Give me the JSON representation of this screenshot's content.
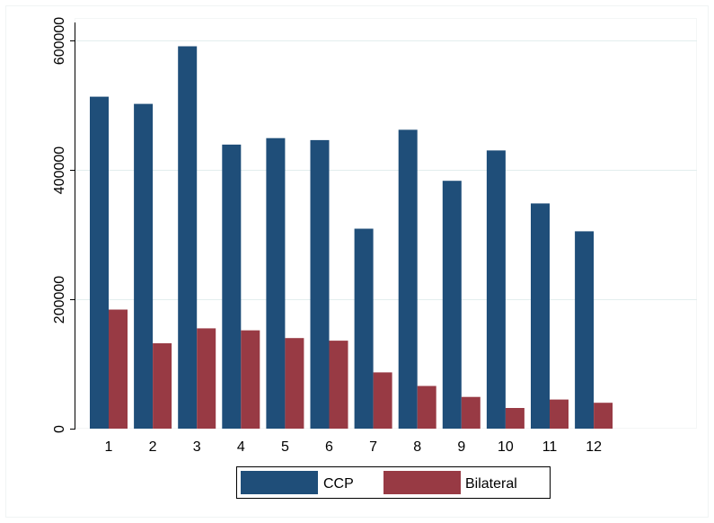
{
  "chart_data": {
    "type": "bar",
    "title": "",
    "xlabel": "",
    "ylabel": "",
    "categories": [
      "1",
      "2",
      "3",
      "4",
      "5",
      "6",
      "7",
      "8",
      "9",
      "10",
      "11",
      "12"
    ],
    "series": [
      {
        "name": "CCP",
        "color": "#1f4e79",
        "values": [
          513000,
          502000,
          591000,
          439000,
          449000,
          446000,
          309000,
          462000,
          383000,
          430000,
          348000,
          305000
        ]
      },
      {
        "name": "Bilateral",
        "color": "#983a44",
        "values": [
          184000,
          132000,
          155000,
          152000,
          140000,
          136000,
          87000,
          66000,
          49000,
          32000,
          45000,
          40000
        ]
      }
    ],
    "ylim": [
      0,
      600000
    ],
    "yticks": [
      {
        "value": 0,
        "label": "0"
      },
      {
        "value": 200000,
        "label": "200000"
      },
      {
        "value": 400000,
        "label": "400000"
      },
      {
        "value": 600000,
        "label": "600000"
      }
    ],
    "grid": true,
    "grid_color": "#e3eeee",
    "legend_position": "bottom"
  }
}
